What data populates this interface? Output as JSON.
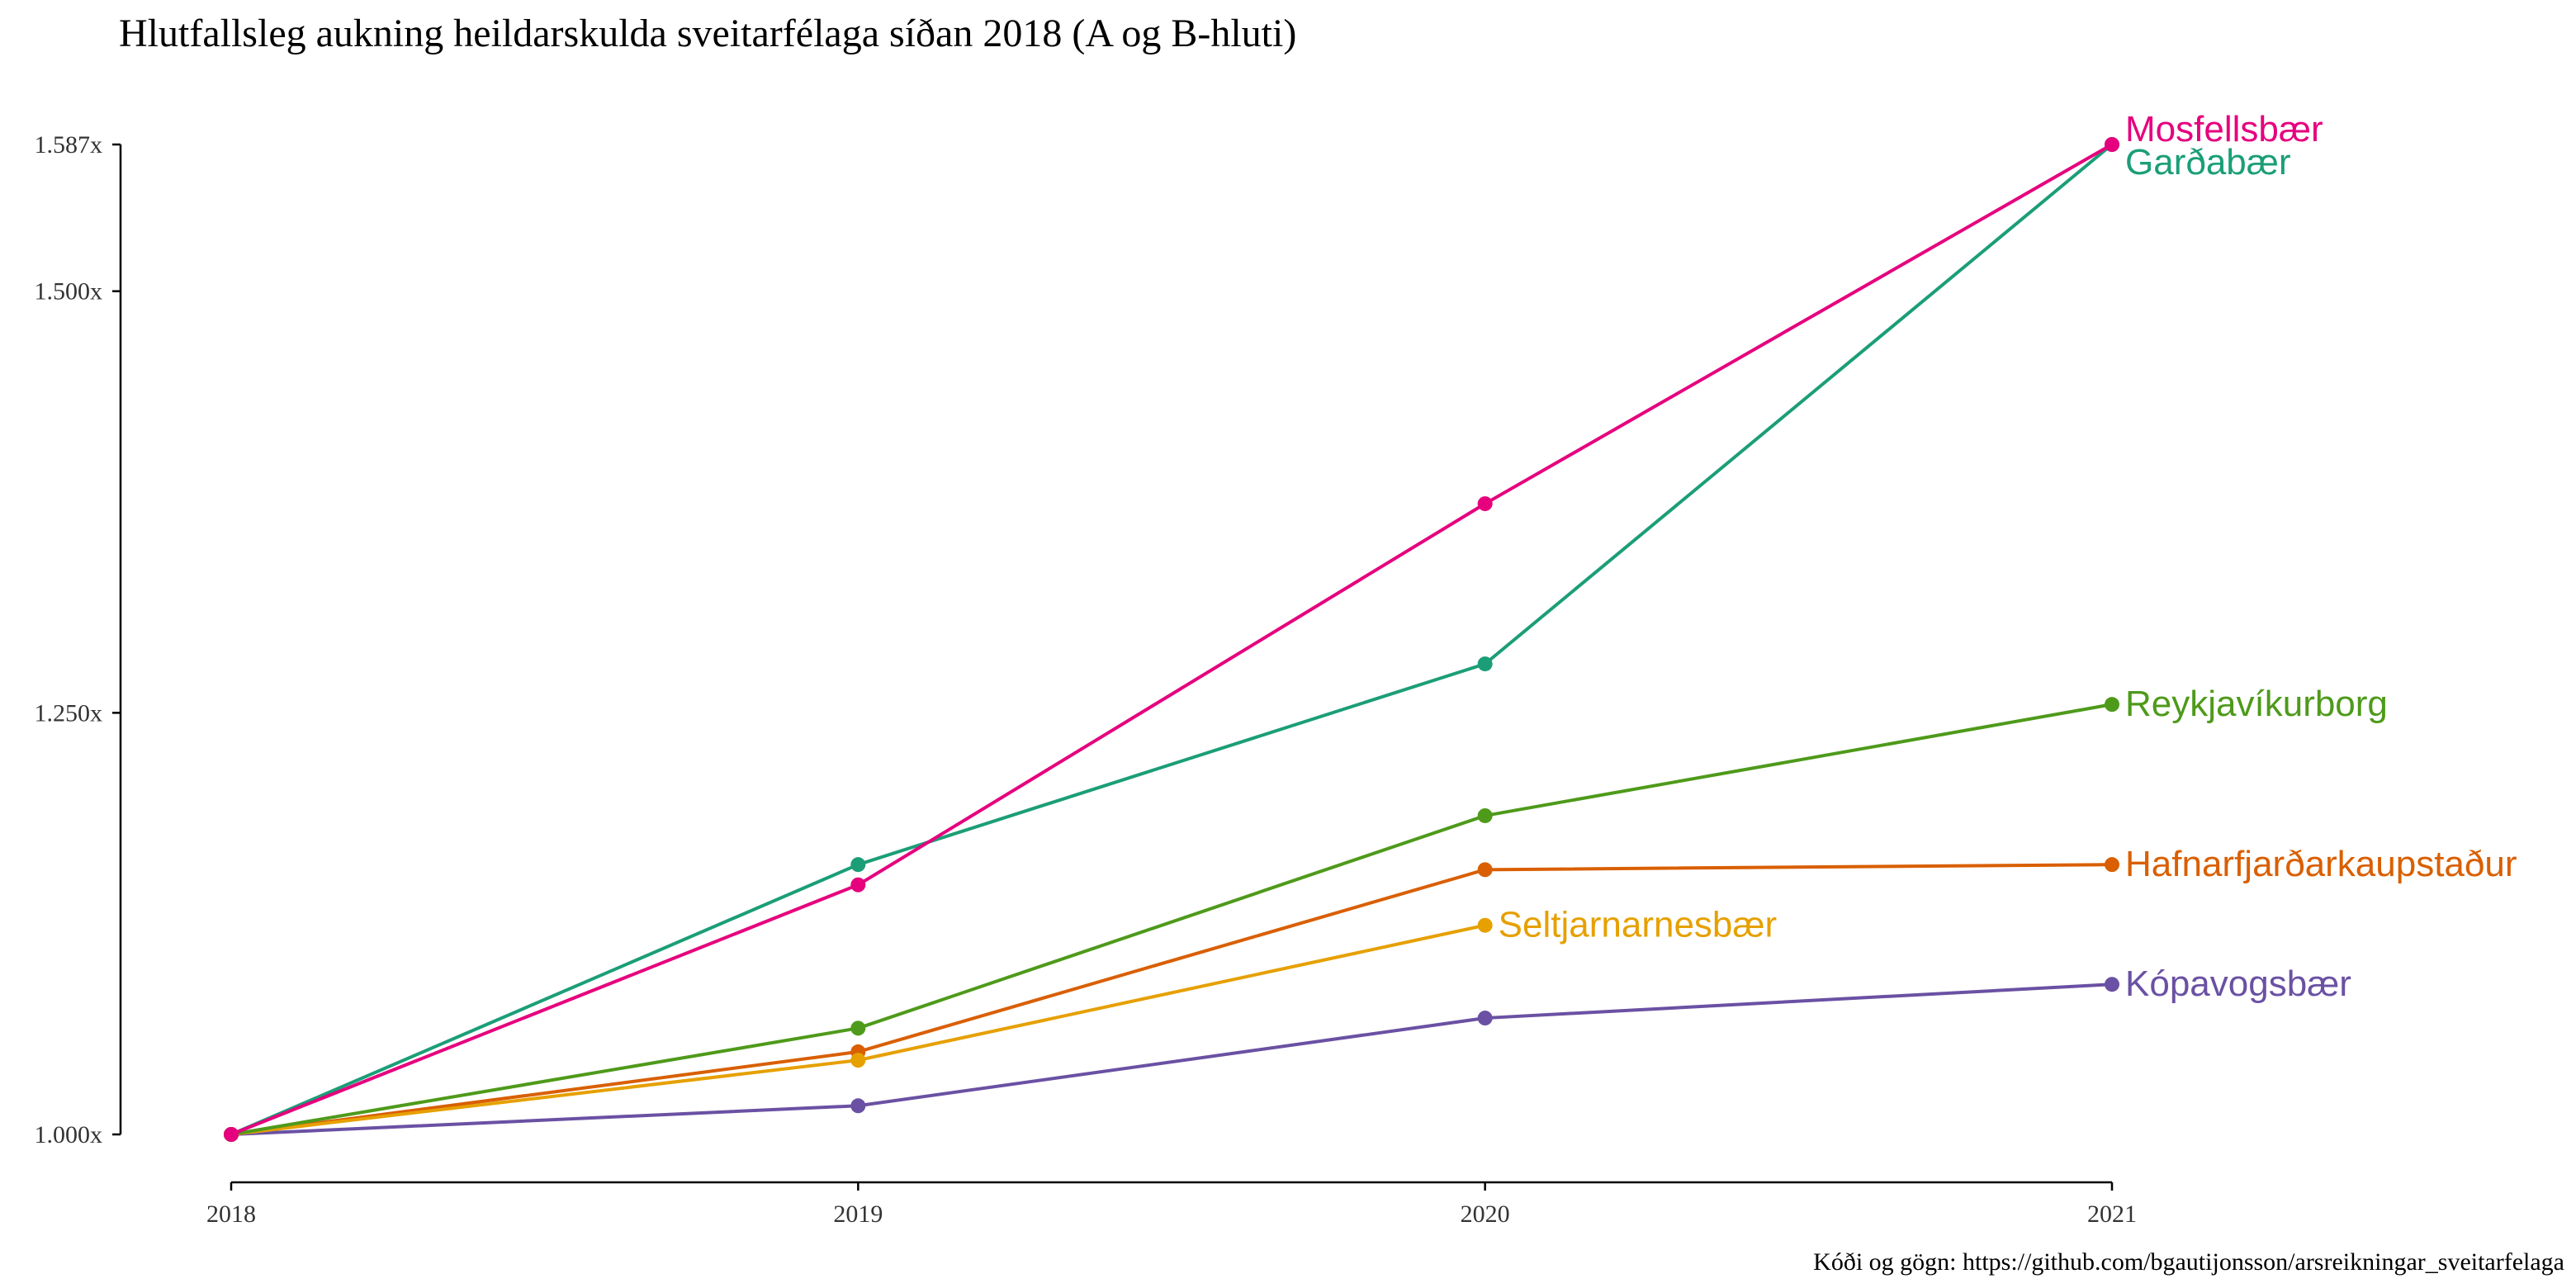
{
  "chart_data": {
    "type": "line",
    "title": "Hlutfallsleg aukning heildarskulda sveitarfélaga síðan 2018 (A og B-hluti)",
    "caption": "Kóði og gögn: https://github.com/bgautijonsson/arsreikningar_sveitarfelaga",
    "xlabel": "",
    "ylabel": "",
    "x": [
      2018,
      2019,
      2020,
      2021
    ],
    "x_tick_labels": [
      "2018",
      "2019",
      "2020",
      "2021"
    ],
    "y_ticks": [
      1.0,
      1.25,
      1.5,
      1.587
    ],
    "y_tick_labels": [
      "1.000x",
      "1.250x",
      "1.500x",
      "1.587x"
    ],
    "ylim": [
      1.0,
      1.587
    ],
    "grid": false,
    "legend": "direct labels at line ends",
    "series": [
      {
        "name": "Garðabær",
        "color": "#1b9e77",
        "x": [
          2018,
          2019,
          2020,
          2021
        ],
        "values": [
          1.0,
          1.16,
          1.279,
          1.587
        ]
      },
      {
        "name": "Kópavogsbær",
        "color": "#6a51a3",
        "x": [
          2018,
          2019,
          2020,
          2021
        ],
        "values": [
          1.0,
          1.017,
          1.069,
          1.089
        ]
      },
      {
        "name": "Hafnarfjarðarkaupstaður",
        "color": "#d95f02",
        "x": [
          2018,
          2019,
          2020,
          2021
        ],
        "values": [
          1.0,
          1.049,
          1.157,
          1.16
        ]
      },
      {
        "name": "Seltjarnarnesbær",
        "color": "#e6a000",
        "x": [
          2018,
          2019,
          2020
        ],
        "values": [
          1.0,
          1.044,
          1.124
        ]
      },
      {
        "name": "Reykjavíkurborg",
        "color": "#4e9a1a",
        "x": [
          2018,
          2019,
          2020,
          2021
        ],
        "values": [
          1.0,
          1.063,
          1.189,
          1.255
        ]
      },
      {
        "name": "Mosfellsbær",
        "color": "#e6007e",
        "x": [
          2018,
          2019,
          2020,
          2021
        ],
        "values": [
          1.0,
          1.148,
          1.374,
          1.587
        ]
      }
    ]
  }
}
